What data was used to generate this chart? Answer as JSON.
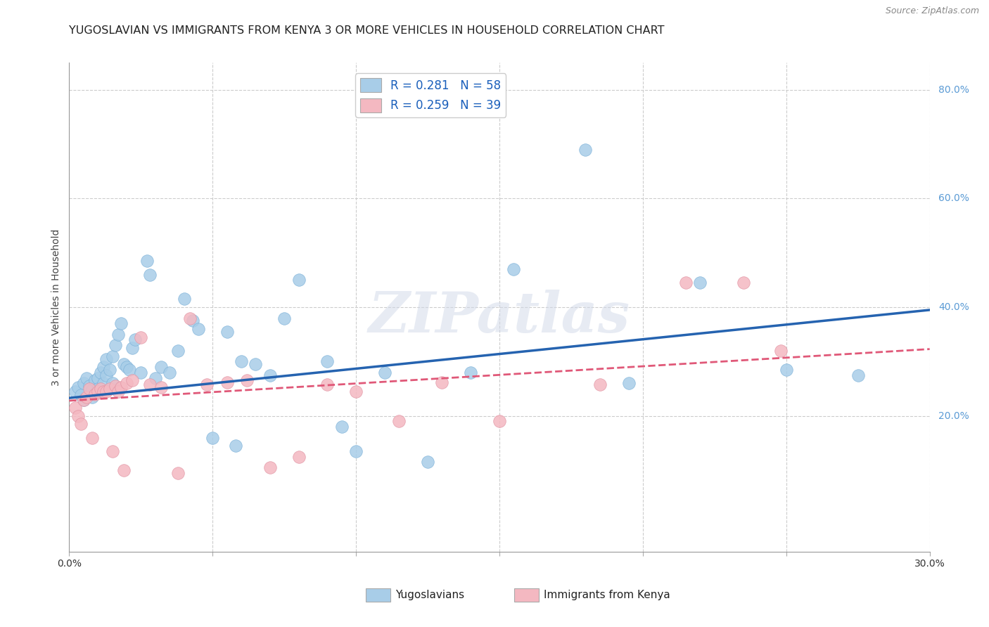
{
  "title": "YUGOSLAVIAN VS IMMIGRANTS FROM KENYA 3 OR MORE VEHICLES IN HOUSEHOLD CORRELATION CHART",
  "source": "Source: ZipAtlas.com",
  "ylabel": "3 or more Vehicles in Household",
  "x_label_blue": "Yugoslavians",
  "x_label_pink": "Immigrants from Kenya",
  "r_blue": 0.281,
  "n_blue": 58,
  "r_pink": 0.259,
  "n_pink": 39,
  "xlim": [
    0.0,
    0.3
  ],
  "ylim": [
    -0.05,
    0.85
  ],
  "xticks": [
    0.0,
    0.05,
    0.1,
    0.15,
    0.2,
    0.25,
    0.3
  ],
  "xtick_labels": [
    "0.0%",
    "",
    "",
    "",
    "",
    "",
    "30.0%"
  ],
  "yticks_right": [
    0.2,
    0.4,
    0.6,
    0.8
  ],
  "ytick_labels_right": [
    "20.0%",
    "40.0%",
    "60.0%",
    "80.0%"
  ],
  "blue_color": "#a8cde8",
  "pink_color": "#f4b8c1",
  "trend_blue": "#2563b0",
  "trend_pink": "#e05878",
  "watermark": "ZIPatlas",
  "blue_scatter_x": [
    0.002,
    0.003,
    0.004,
    0.005,
    0.005,
    0.006,
    0.007,
    0.008,
    0.008,
    0.009,
    0.01,
    0.01,
    0.011,
    0.012,
    0.012,
    0.013,
    0.013,
    0.014,
    0.015,
    0.015,
    0.016,
    0.017,
    0.018,
    0.019,
    0.02,
    0.021,
    0.022,
    0.023,
    0.025,
    0.027,
    0.028,
    0.03,
    0.032,
    0.035,
    0.038,
    0.04,
    0.043,
    0.045,
    0.05,
    0.055,
    0.058,
    0.06,
    0.065,
    0.07,
    0.075,
    0.08,
    0.09,
    0.095,
    0.1,
    0.11,
    0.125,
    0.14,
    0.155,
    0.18,
    0.195,
    0.22,
    0.25,
    0.275
  ],
  "blue_scatter_y": [
    0.245,
    0.252,
    0.238,
    0.26,
    0.23,
    0.27,
    0.255,
    0.248,
    0.235,
    0.265,
    0.27,
    0.25,
    0.28,
    0.26,
    0.29,
    0.305,
    0.275,
    0.285,
    0.31,
    0.26,
    0.33,
    0.35,
    0.37,
    0.295,
    0.29,
    0.285,
    0.325,
    0.34,
    0.28,
    0.485,
    0.46,
    0.27,
    0.29,
    0.28,
    0.32,
    0.415,
    0.375,
    0.36,
    0.16,
    0.355,
    0.145,
    0.3,
    0.295,
    0.275,
    0.38,
    0.45,
    0.3,
    0.18,
    0.135,
    0.28,
    0.115,
    0.28,
    0.47,
    0.69,
    0.26,
    0.445,
    0.285,
    0.275
  ],
  "pink_scatter_x": [
    0.002,
    0.003,
    0.004,
    0.005,
    0.006,
    0.007,
    0.008,
    0.009,
    0.01,
    0.011,
    0.012,
    0.013,
    0.014,
    0.015,
    0.016,
    0.017,
    0.018,
    0.019,
    0.02,
    0.022,
    0.025,
    0.028,
    0.032,
    0.038,
    0.042,
    0.048,
    0.055,
    0.062,
    0.07,
    0.08,
    0.09,
    0.1,
    0.115,
    0.13,
    0.15,
    0.185,
    0.215,
    0.235,
    0.248
  ],
  "pink_scatter_y": [
    0.215,
    0.2,
    0.185,
    0.23,
    0.235,
    0.25,
    0.16,
    0.24,
    0.245,
    0.25,
    0.245,
    0.245,
    0.25,
    0.135,
    0.255,
    0.245,
    0.252,
    0.1,
    0.26,
    0.265,
    0.345,
    0.258,
    0.252,
    0.095,
    0.38,
    0.258,
    0.262,
    0.265,
    0.105,
    0.125,
    0.258,
    0.245,
    0.19,
    0.262,
    0.19,
    0.258,
    0.445,
    0.445,
    0.32
  ],
  "blue_trend_x": [
    0.0,
    0.3
  ],
  "blue_trend_y": [
    0.233,
    0.395
  ],
  "pink_trend_x": [
    0.0,
    0.3
  ],
  "pink_trend_y": [
    0.228,
    0.323
  ],
  "background_color": "#ffffff",
  "grid_color": "#cccccc",
  "title_fontsize": 11.5,
  "axis_label_fontsize": 10,
  "tick_fontsize": 10,
  "legend_fontsize": 12
}
